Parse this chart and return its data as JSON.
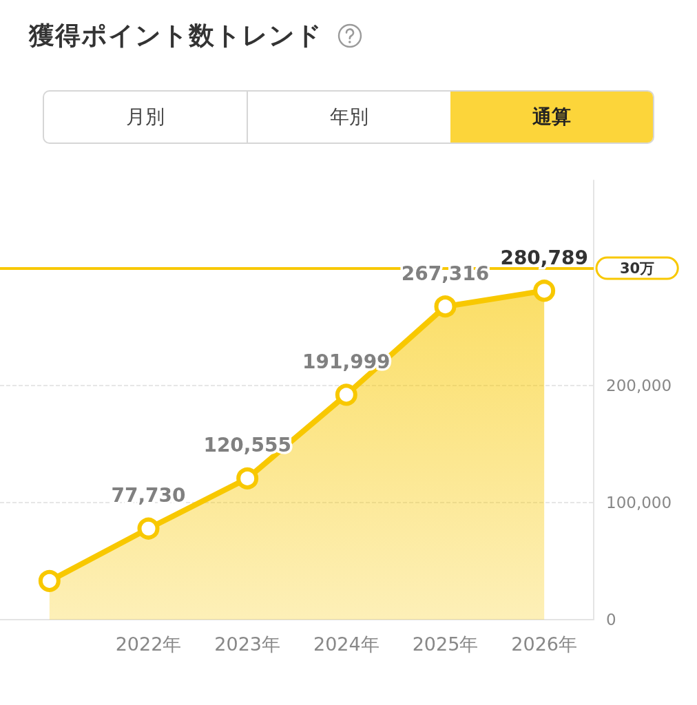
{
  "chart_data": {
    "type": "area",
    "title": "獲得ポイント数トレンド",
    "annotations": [
      "月別",
      "年別",
      "通算"
    ],
    "categories": [
      null,
      "2022年",
      "2023年",
      "2024年",
      "2025年",
      "2026年"
    ],
    "values": [
      33000,
      77730,
      120555,
      191999,
      267316,
      280789
    ],
    "value_labels": [
      null,
      "77,730",
      "120,555",
      "191,999",
      "267,316",
      "280,789"
    ],
    "color": "#f8c800",
    "marker": "circle",
    "line_style": "solid",
    "grid": "y",
    "ylim": [
      0,
      375000
    ],
    "yticks": [
      0,
      {
        "value": 100000,
        "label": "100,000"
      },
      {
        "value": 200000,
        "label": "200,000"
      }
    ],
    "ref_lines": [
      {
        "axis": "y",
        "value": 300000,
        "label": "30万",
        "color": "#f8c800"
      }
    ]
  }
}
